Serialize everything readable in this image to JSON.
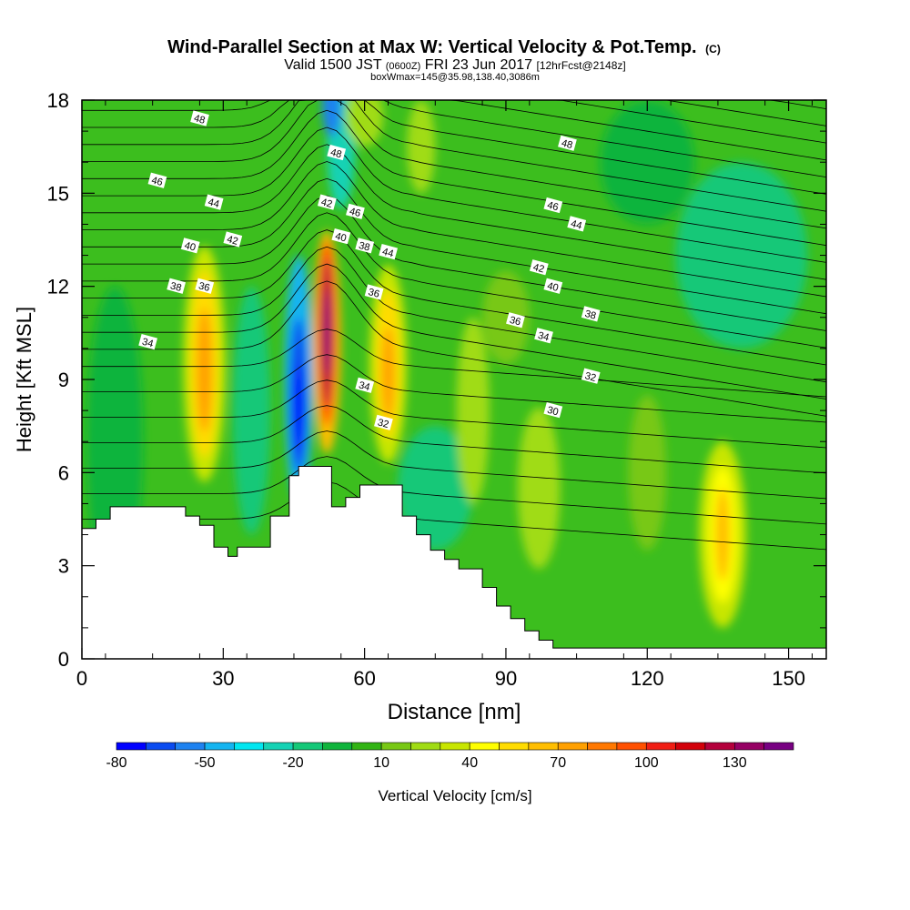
{
  "chart_data": {
    "type": "heatmap",
    "title": "Wind-Parallel Section at Max W: Vertical Velocity & Pot.Temp.",
    "title_mark": "(C)",
    "subtitle": {
      "a": "Valid 1500 JST",
      "b": "(0600Z)",
      "c": "FRI 23 Jun 2017",
      "d": "[12hrFcst@2148z]"
    },
    "subtitle2": "boxWmax=145@35.98,138.40,3086m",
    "xlabel": "Distance [nm]",
    "ylabel": "Height [Kft MSL]",
    "xlim": [
      0,
      158
    ],
    "ylim": [
      0,
      18
    ],
    "xticks": [
      0,
      30,
      60,
      90,
      120,
      150
    ],
    "yticks": [
      0,
      3,
      6,
      9,
      12,
      15,
      18
    ],
    "colorbar": {
      "label": "Vertical Velocity [cm/s]",
      "min": -80,
      "max": 145,
      "step": 10,
      "tick_values": [
        -80,
        -50,
        -20,
        10,
        40,
        70,
        100,
        130
      ],
      "colors": [
        "#0000ff",
        "#0a4bf0",
        "#1e82f0",
        "#14b4f0",
        "#00e6f0",
        "#14d2b4",
        "#14c878",
        "#0fb43c",
        "#32b414",
        "#78c814",
        "#a0dc14",
        "#c8e600",
        "#ffff00",
        "#ffdc00",
        "#ffbe00",
        "#ffa000",
        "#ff7800",
        "#ff5000",
        "#f01e14",
        "#d2000a",
        "#b4003c",
        "#960064",
        "#780082"
      ]
    },
    "theta_contour_labels": [
      {
        "x": 14,
        "y": 10.2,
        "v": "34"
      },
      {
        "x": 20,
        "y": 12.0,
        "v": "38"
      },
      {
        "x": 26,
        "y": 12.0,
        "v": "36"
      },
      {
        "x": 23,
        "y": 13.3,
        "v": "40"
      },
      {
        "x": 32,
        "y": 13.5,
        "v": "42"
      },
      {
        "x": 28,
        "y": 14.7,
        "v": "44"
      },
      {
        "x": 16,
        "y": 15.4,
        "v": "46"
      },
      {
        "x": 25,
        "y": 17.4,
        "v": "48"
      },
      {
        "x": 54,
        "y": 16.3,
        "v": "48"
      },
      {
        "x": 52,
        "y": 14.7,
        "v": "42"
      },
      {
        "x": 58,
        "y": 14.4,
        "v": "46"
      },
      {
        "x": 55,
        "y": 13.6,
        "v": "40"
      },
      {
        "x": 60,
        "y": 13.3,
        "v": "38"
      },
      {
        "x": 65,
        "y": 13.1,
        "v": "44"
      },
      {
        "x": 62,
        "y": 11.8,
        "v": "36"
      },
      {
        "x": 60,
        "y": 8.8,
        "v": "34"
      },
      {
        "x": 64,
        "y": 7.6,
        "v": "32"
      },
      {
        "x": 103,
        "y": 16.6,
        "v": "48"
      },
      {
        "x": 100,
        "y": 14.6,
        "v": "46"
      },
      {
        "x": 105,
        "y": 14.0,
        "v": "44"
      },
      {
        "x": 97,
        "y": 12.6,
        "v": "42"
      },
      {
        "x": 100,
        "y": 12.0,
        "v": "40"
      },
      {
        "x": 108,
        "y": 11.1,
        "v": "38"
      },
      {
        "x": 92,
        "y": 10.9,
        "v": "36"
      },
      {
        "x": 98,
        "y": 10.4,
        "v": "34"
      },
      {
        "x": 108,
        "y": 9.1,
        "v": "32"
      },
      {
        "x": 100,
        "y": 8.0,
        "v": "30"
      }
    ],
    "terrain_profile": [
      [
        0,
        4.2
      ],
      [
        3,
        4.2
      ],
      [
        3,
        4.5
      ],
      [
        6,
        4.5
      ],
      [
        6,
        4.9
      ],
      [
        22,
        4.9
      ],
      [
        22,
        4.6
      ],
      [
        25,
        4.6
      ],
      [
        25,
        4.3
      ],
      [
        28,
        4.3
      ],
      [
        28,
        3.6
      ],
      [
        31,
        3.6
      ],
      [
        31,
        3.3
      ],
      [
        33,
        3.3
      ],
      [
        33,
        3.6
      ],
      [
        40,
        3.6
      ],
      [
        40,
        4.6
      ],
      [
        44,
        4.6
      ],
      [
        44,
        5.9
      ],
      [
        46,
        5.9
      ],
      [
        46,
        6.2
      ],
      [
        53,
        6.2
      ],
      [
        53,
        4.9
      ],
      [
        56,
        4.9
      ],
      [
        56,
        5.2
      ],
      [
        59,
        5.2
      ],
      [
        59,
        5.6
      ],
      [
        68,
        5.6
      ],
      [
        68,
        4.6
      ],
      [
        71,
        4.6
      ],
      [
        71,
        4.0
      ],
      [
        74,
        4.0
      ],
      [
        74,
        3.5
      ],
      [
        77,
        3.5
      ],
      [
        77,
        3.2
      ],
      [
        80,
        3.2
      ],
      [
        80,
        2.9
      ],
      [
        85,
        2.9
      ],
      [
        85,
        2.3
      ],
      [
        88,
        2.3
      ],
      [
        88,
        1.7
      ],
      [
        91,
        1.7
      ],
      [
        91,
        1.3
      ],
      [
        94,
        1.3
      ],
      [
        94,
        0.9
      ],
      [
        97,
        0.9
      ],
      [
        97,
        0.6
      ],
      [
        100,
        0.6
      ],
      [
        100,
        0.35
      ],
      [
        158,
        0.35
      ]
    ]
  }
}
